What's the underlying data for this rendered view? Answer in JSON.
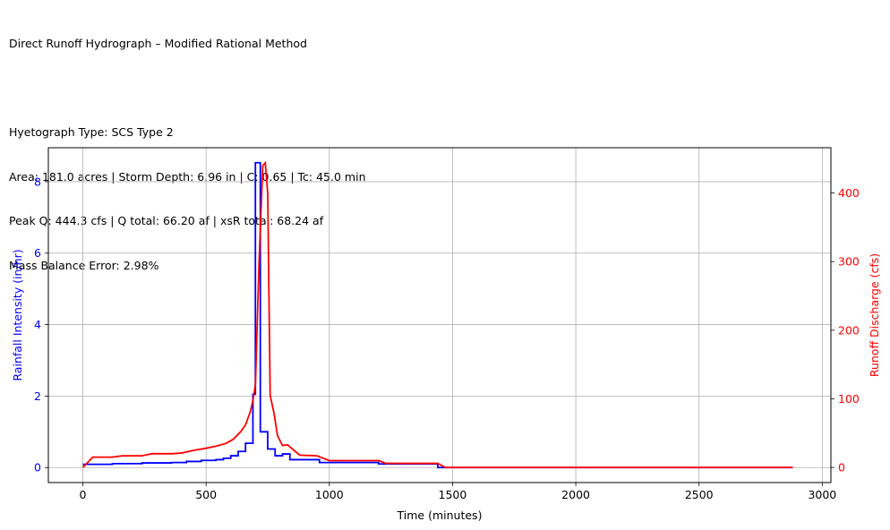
{
  "header": {
    "title": "Direct Runoff Hydrograph – Modified Rational Method",
    "line_hyeto": "Hyetograph Type: SCS Type 2",
    "line_params": "Area: 181.0 acres | Storm Depth: 6.96 in | C: 0.65 | Tc: 45.0 min",
    "line_peak": "Peak Q: 444.3 cfs | Q total: 66.20 af | xsR total: 68.24 af",
    "line_mass": "Mass Balance Error: 2.98%"
  },
  "chart_data": {
    "type": "line",
    "xlabel": "Time (minutes)",
    "ylabel_left": "Rainfall Intensity (in/hr)",
    "ylabel_right": "Runoff Discharge (cfs)",
    "xlim": [
      -140,
      3035
    ],
    "ylim_left": [
      -0.42,
      8.95
    ],
    "ylim_right": [
      -22,
      466
    ],
    "x_ticks": [
      0,
      500,
      1000,
      1500,
      2000,
      2500,
      3000
    ],
    "y_left_ticks": [
      0,
      2,
      4,
      6,
      8
    ],
    "y_right_ticks": [
      0,
      100,
      200,
      300,
      400
    ],
    "grid": true,
    "colors": {
      "rainfall": "#0000ff",
      "runoff": "#ff0000",
      "grid": "#b0b0b0"
    },
    "series": [
      {
        "axis": "left",
        "color": "#0000ff",
        "drawstyle": "steps-post",
        "x": [
          0,
          30,
          120,
          240,
          360,
          420,
          480,
          540,
          570,
          600,
          630,
          660,
          690,
          700,
          705,
          720,
          735,
          750,
          780,
          810,
          840,
          960,
          1200,
          1440,
          1500,
          2880
        ],
        "values": [
          0.09,
          0.09,
          0.11,
          0.13,
          0.14,
          0.17,
          0.2,
          0.22,
          0.26,
          0.33,
          0.45,
          0.68,
          2.05,
          8.53,
          8.53,
          1.0,
          1.0,
          0.52,
          0.33,
          0.38,
          0.22,
          0.14,
          0.1,
          0.0,
          0.0,
          0.0
        ]
      },
      {
        "axis": "right",
        "color": "#ff0000",
        "x": [
          0,
          40,
          120,
          160,
          240,
          280,
          360,
          400,
          450,
          500,
          540,
          580,
          610,
          640,
          660,
          680,
          690,
          700,
          715,
          730,
          740,
          750,
          760,
          775,
          790,
          810,
          830,
          850,
          880,
          950,
          1000,
          1200,
          1230,
          1440,
          1470,
          2880
        ],
        "values": [
          0,
          15,
          15,
          17,
          17,
          20,
          20,
          21,
          25,
          28,
          31,
          35,
          41,
          52,
          62,
          82,
          98,
          120,
          300,
          440,
          444,
          400,
          105,
          80,
          46,
          32,
          33,
          27,
          18,
          17,
          10,
          10,
          6,
          6,
          0,
          0
        ]
      }
    ]
  }
}
